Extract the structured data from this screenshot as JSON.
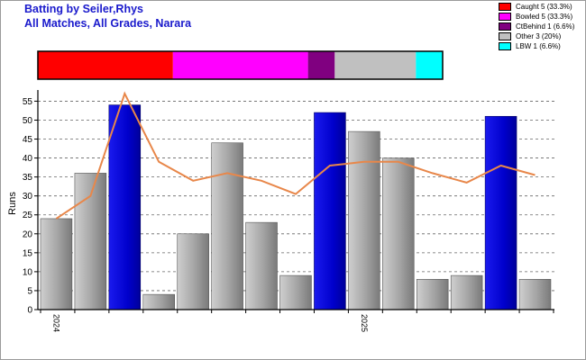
{
  "header": {
    "title_line1": "Batting by Seiler,Rhys",
    "title_line2": "All Matches, All Grades, Narara"
  },
  "legend": [
    {
      "label": "Caught 5 (33.3%)",
      "color": "#ff0000"
    },
    {
      "label": "Bowled 5 (33.3%)",
      "color": "#ff00ff"
    },
    {
      "label": "CtBehind 1 (6.6%)",
      "color": "#800080"
    },
    {
      "label": "Other 3 (20%)",
      "color": "#c0c0c0"
    },
    {
      "label": "LBW 1 (6.6%)",
      "color": "#00ffff"
    }
  ],
  "chart_data": {
    "type": "bar",
    "ylabel": "Runs",
    "xlabel": "",
    "ylim": [
      0,
      57
    ],
    "yticks": [
      0,
      5,
      10,
      15,
      20,
      25,
      30,
      35,
      40,
      45,
      50,
      55
    ],
    "x_tick_labels": [
      {
        "label": "2024",
        "index": 0
      },
      {
        "label": "2025",
        "index": 9
      }
    ],
    "grid": "horizontal dashed",
    "values": [
      24,
      36,
      54,
      4,
      20,
      44,
      23,
      9,
      52,
      47,
      40,
      8,
      9,
      51,
      8
    ],
    "bar_colors": [
      "grey",
      "grey",
      "blue",
      "grey",
      "grey",
      "grey",
      "grey",
      "grey",
      "blue",
      "grey",
      "grey",
      "grey",
      "grey",
      "blue",
      "grey"
    ],
    "trend_line": {
      "color": "#e8874a",
      "values": [
        24,
        30,
        57,
        39,
        34,
        36,
        34,
        30.5,
        38,
        39,
        39,
        36,
        33.5,
        38,
        35.5
      ]
    },
    "dismissal_bar": [
      {
        "type": "Caught",
        "percent": 33.3,
        "color": "#ff0000"
      },
      {
        "type": "Bowled",
        "percent": 33.3,
        "color": "#ff00ff"
      },
      {
        "type": "CtBehind",
        "percent": 6.6,
        "color": "#800080"
      },
      {
        "type": "Other",
        "percent": 20,
        "color": "#c0c0c0"
      },
      {
        "type": "LBW",
        "percent": 6.6,
        "color": "#00ffff"
      }
    ]
  }
}
